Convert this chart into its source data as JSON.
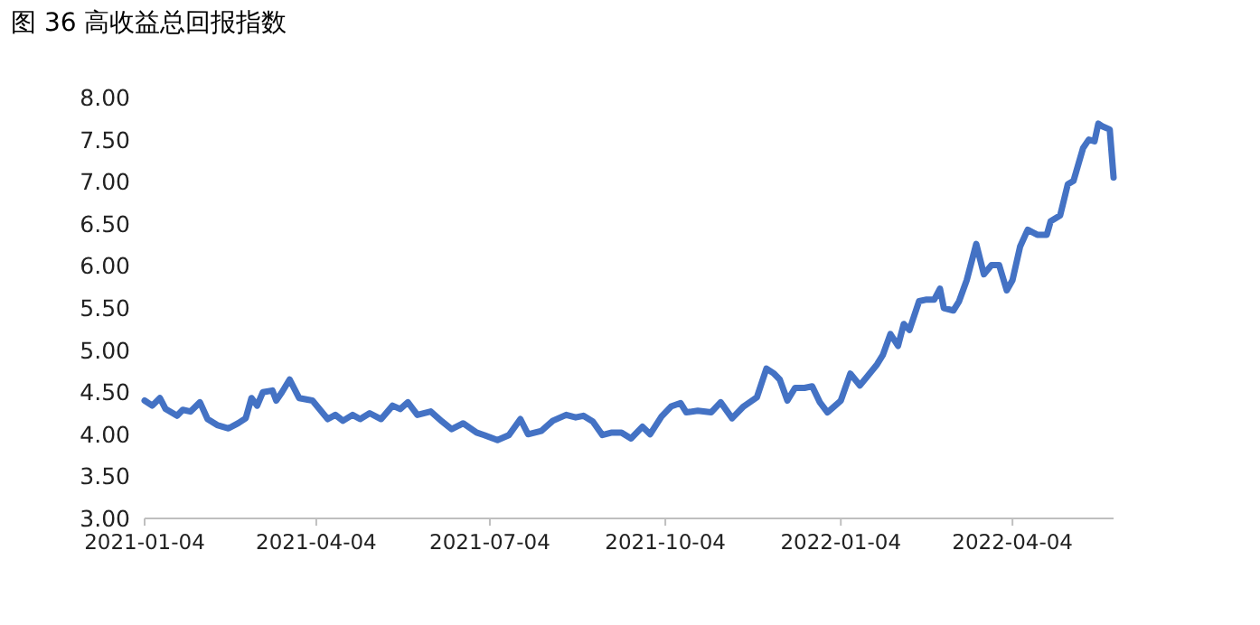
{
  "chart_data": {
    "type": "line",
    "title": "图 36 高收益总回报指数",
    "x": [
      "2021-01-04",
      "2021-01-08",
      "2021-01-12",
      "2021-01-15",
      "2021-01-21",
      "2021-01-24",
      "2021-01-28",
      "2021-02-02",
      "2021-02-06",
      "2021-02-11",
      "2021-02-17",
      "2021-02-22",
      "2021-02-26",
      "2021-03-01",
      "2021-03-04",
      "2021-03-07",
      "2021-03-12",
      "2021-03-14",
      "2021-03-17",
      "2021-03-21",
      "2021-03-26",
      "2021-04-02",
      "2021-04-10",
      "2021-04-14",
      "2021-04-18",
      "2021-04-23",
      "2021-04-27",
      "2021-05-02",
      "2021-05-08",
      "2021-05-14",
      "2021-05-18",
      "2021-05-22",
      "2021-05-27",
      "2021-06-03",
      "2021-06-09",
      "2021-06-14",
      "2021-06-20",
      "2021-06-27",
      "2021-07-01",
      "2021-07-08",
      "2021-07-14",
      "2021-07-20",
      "2021-07-24",
      "2021-07-31",
      "2021-08-06",
      "2021-08-13",
      "2021-08-18",
      "2021-08-22",
      "2021-08-27",
      "2021-09-01",
      "2021-09-06",
      "2021-09-11",
      "2021-09-16",
      "2021-09-22",
      "2021-09-26",
      "2021-10-02",
      "2021-10-07",
      "2021-10-12",
      "2021-10-15",
      "2021-10-21",
      "2021-10-28",
      "2021-11-02",
      "2021-11-08",
      "2021-11-14",
      "2021-11-21",
      "2021-11-26",
      "2021-11-30",
      "2021-12-03",
      "2021-12-07",
      "2021-12-11",
      "2021-12-16",
      "2021-12-20",
      "2021-12-24",
      "2021-12-28",
      "2022-01-04",
      "2022-01-09",
      "2022-01-14",
      "2022-01-18",
      "2022-01-23",
      "2022-01-26",
      "2022-01-30",
      "2022-02-03",
      "2022-02-06",
      "2022-02-09",
      "2022-02-14",
      "2022-02-18",
      "2022-02-22",
      "2022-02-25",
      "2022-02-27",
      "2022-03-04",
      "2022-03-07",
      "2022-03-11",
      "2022-03-16",
      "2022-03-20",
      "2022-03-24",
      "2022-03-28",
      "2022-04-01",
      "2022-04-04",
      "2022-04-08",
      "2022-04-12",
      "2022-04-17",
      "2022-04-22",
      "2022-04-24",
      "2022-04-29",
      "2022-05-03",
      "2022-05-06",
      "2022-05-11",
      "2022-05-14",
      "2022-05-17",
      "2022-05-19",
      "2022-05-21",
      "2022-05-25",
      "2022-05-27"
    ],
    "series": [
      {
        "color": "#4472c4",
        "values": [
          4.4,
          4.34,
          4.43,
          4.3,
          4.22,
          4.29,
          4.27,
          4.38,
          4.18,
          4.11,
          4.07,
          4.13,
          4.19,
          4.43,
          4.34,
          4.5,
          4.52,
          4.4,
          4.5,
          4.65,
          4.43,
          4.4,
          4.18,
          4.23,
          4.16,
          4.23,
          4.18,
          4.25,
          4.18,
          4.34,
          4.3,
          4.38,
          4.23,
          4.27,
          4.15,
          4.06,
          4.13,
          4.02,
          3.99,
          3.93,
          3.99,
          4.18,
          4.0,
          4.04,
          4.16,
          4.23,
          4.2,
          4.22,
          4.15,
          3.99,
          4.02,
          4.02,
          3.95,
          4.09,
          4.0,
          4.21,
          4.33,
          4.37,
          4.26,
          4.28,
          4.26,
          4.38,
          4.19,
          4.33,
          4.44,
          4.78,
          4.72,
          4.65,
          4.4,
          4.55,
          4.55,
          4.57,
          4.38,
          4.26,
          4.4,
          4.72,
          4.58,
          4.69,
          4.83,
          4.94,
          5.19,
          5.05,
          5.31,
          5.24,
          5.58,
          5.6,
          5.6,
          5.73,
          5.5,
          5.47,
          5.58,
          5.83,
          6.26,
          5.9,
          6.01,
          6.01,
          5.71,
          5.83,
          6.23,
          6.43,
          6.37,
          6.37,
          6.53,
          6.6,
          6.97,
          7.01,
          7.4,
          7.5,
          7.48,
          7.69,
          7.66,
          7.62,
          7.05
        ]
      }
    ],
    "xlim": [
      "2021-01-04",
      "2022-05-27"
    ],
    "xticks": [
      "2021-01-04",
      "2021-04-04",
      "2021-07-04",
      "2021-10-04",
      "2022-01-04",
      "2022-04-04"
    ],
    "ylim": [
      3,
      8
    ],
    "yticks": [
      {
        "value": 3,
        "label": "3.00"
      },
      {
        "value": 3.5,
        "label": "3.50"
      },
      {
        "value": 4,
        "label": "4.00"
      },
      {
        "value": 4.5,
        "label": "4.50"
      },
      {
        "value": 5,
        "label": "5.00"
      },
      {
        "value": 5.5,
        "label": "5.50"
      },
      {
        "value": 6,
        "label": "6.00"
      },
      {
        "value": 6.5,
        "label": "6.50"
      },
      {
        "value": 7,
        "label": "7.00"
      },
      {
        "value": 7.5,
        "label": "7.50"
      },
      {
        "value": 8,
        "label": "8.00"
      }
    ],
    "line_style": "solid",
    "marker": "none"
  }
}
